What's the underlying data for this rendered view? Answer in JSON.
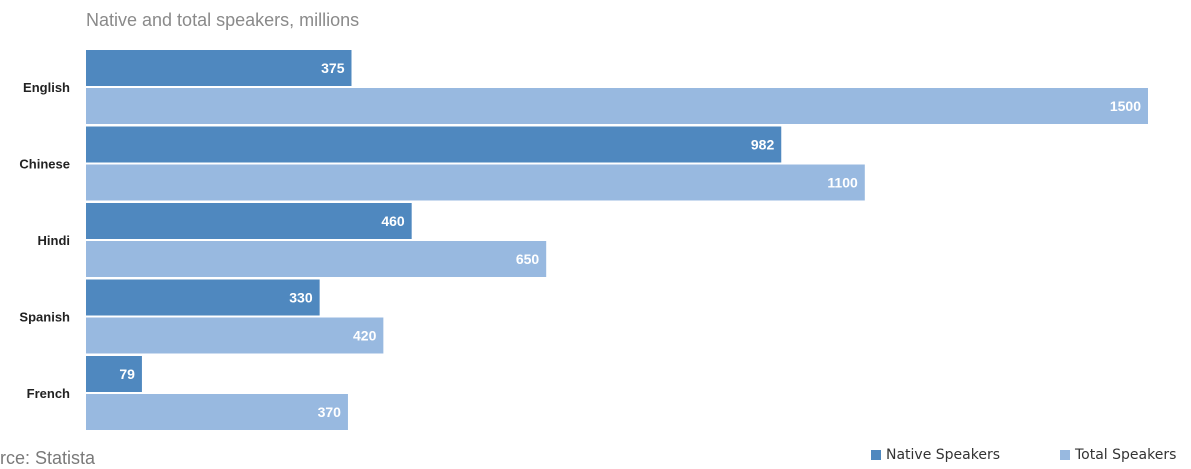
{
  "chart_data": {
    "type": "bar",
    "orientation": "horizontal",
    "title": "Native and total speakers, millions",
    "source": "urce: Statista",
    "categories": [
      "English",
      "Chinese",
      "Hindi",
      "Spanish",
      "French"
    ],
    "series": [
      {
        "name": "Native Speakers",
        "color": "#4f88bf",
        "values": [
          375,
          982,
          460,
          330,
          79
        ]
      },
      {
        "name": "Total Speakers",
        "color": "#98b9e0",
        "values": [
          1500,
          1100,
          650,
          420,
          370
        ]
      }
    ],
    "xlim": [
      0,
      1500
    ],
    "grid": false,
    "legend": "bottom-right"
  }
}
